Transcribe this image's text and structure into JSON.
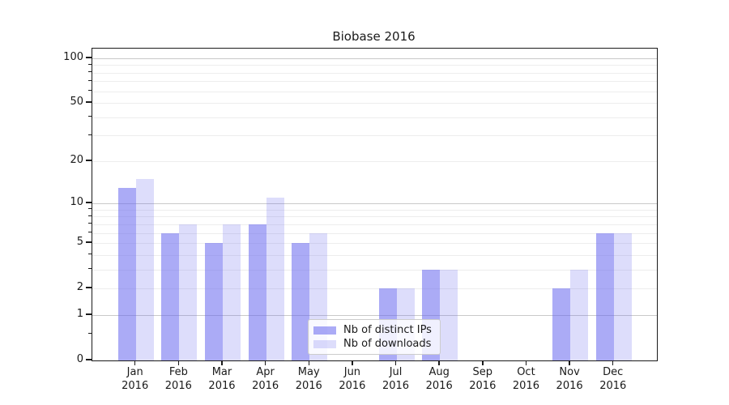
{
  "chart_data": {
    "type": "bar",
    "title": "Biobase 2016",
    "xlabel": "",
    "ylabel": "",
    "categories": [
      "Jan 2016",
      "Feb 2016",
      "Mar 2016",
      "Apr 2016",
      "May 2016",
      "Jun 2016",
      "Jul 2016",
      "Aug 2016",
      "Sep 2016",
      "Oct 2016",
      "Nov 2016",
      "Dec 2016"
    ],
    "series": [
      {
        "name": "Nb of distinct IPs",
        "color": "#6666ee",
        "alpha": 0.55,
        "values": [
          13,
          6,
          5,
          7,
          5,
          0,
          2,
          3,
          0,
          0,
          2,
          6
        ]
      },
      {
        "name": "Nb of downloads",
        "color": "#6666ee",
        "alpha": 0.22,
        "values": [
          15,
          7,
          7,
          11,
          6,
          0,
          2,
          3,
          0,
          0,
          3,
          6
        ]
      }
    ],
    "yscale": "log1p",
    "ylim": [
      0,
      116
    ],
    "yticks": [
      0,
      1,
      2,
      5,
      10,
      20,
      50,
      100
    ],
    "major_gridlines": [
      1,
      10,
      100
    ],
    "minor_gridlines": [
      2,
      3,
      4,
      5,
      6,
      7,
      8,
      9,
      20,
      30,
      40,
      50,
      60,
      70,
      80,
      90
    ],
    "minor_ticks": [
      0.5,
      3,
      4,
      6,
      7,
      8,
      9,
      30,
      40,
      60,
      70,
      80,
      90
    ],
    "grid": true,
    "legend_position": "lower center"
  }
}
